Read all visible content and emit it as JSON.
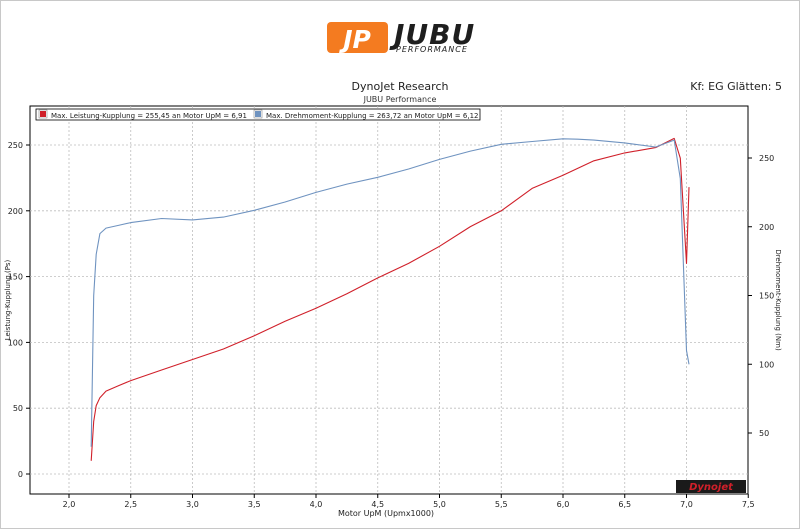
{
  "logo": {
    "badge": "JP",
    "name": "JUBU",
    "tagline": "PERFORMANCE",
    "badge_color": "#f47b20"
  },
  "header": {
    "title": "DynoJet Research",
    "subtitle": "JUBU Performance",
    "kf_info": "Kf: EG Glätten: 5"
  },
  "legend": {
    "items": [
      {
        "label": "Max. Leistung-Kupplung = 255,45 an Motor UpM = 6,91",
        "color": "#d0202a"
      },
      {
        "label": "Max. Drehmoment-Kupplung = 263,72 an Motor UpM = 6,12",
        "color": "#6f93c0"
      }
    ]
  },
  "watermark": {
    "text": "Dynojet"
  },
  "chart_data": {
    "type": "line",
    "xlabel": "Motor UpM (Upmx1000)",
    "ylabel_left": "Leistung-Kupplung (Ps)",
    "ylabel_right": "Drehmoment-Kupplung (Nm)",
    "xlim": [
      1.7,
      7.5
    ],
    "ylim_left": [
      -10,
      270
    ],
    "ylim_right": [
      -10,
      290
    ],
    "x_ticks": [
      "2,0",
      "2,5",
      "3,0",
      "3,5",
      "4,0",
      "4,5",
      "5,0",
      "5,5",
      "6,0",
      "6,5",
      "7,0",
      "7,5"
    ],
    "y_ticks_left": [
      "0",
      "50",
      "100",
      "150",
      "200",
      "250"
    ],
    "y_ticks_right": [
      "50",
      "100",
      "150",
      "200",
      "250"
    ],
    "grid": true,
    "series": [
      {
        "name": "Leistung-Kupplung",
        "axis": "left",
        "color": "#d0202a",
        "x": [
          2.18,
          2.2,
          2.22,
          2.25,
          2.3,
          2.4,
          2.5,
          2.75,
          3.0,
          3.25,
          3.5,
          3.75,
          4.0,
          4.25,
          4.5,
          4.75,
          5.0,
          5.25,
          5.5,
          5.75,
          6.0,
          6.25,
          6.5,
          6.75,
          6.9,
          6.95,
          7.0,
          7.02
        ],
        "values": [
          10,
          40,
          52,
          58,
          63,
          67,
          71,
          79,
          87,
          95,
          105,
          116,
          126,
          137,
          149,
          160,
          173,
          188,
          200,
          217,
          227,
          238,
          244,
          248,
          255,
          240,
          160,
          218
        ]
      },
      {
        "name": "Drehmoment-Kupplung",
        "axis": "right",
        "color": "#6f93c0",
        "x": [
          2.18,
          2.2,
          2.22,
          2.25,
          2.3,
          2.4,
          2.5,
          2.75,
          3.0,
          3.25,
          3.5,
          3.75,
          4.0,
          4.25,
          4.5,
          4.75,
          5.0,
          5.25,
          5.5,
          5.75,
          6.0,
          6.12,
          6.25,
          6.5,
          6.75,
          6.9,
          6.95,
          7.0,
          7.02
        ],
        "values": [
          40,
          150,
          180,
          195,
          199,
          201,
          203,
          206,
          205,
          207,
          212,
          218,
          225,
          231,
          236,
          242,
          249,
          255,
          260,
          262,
          264,
          263.7,
          263,
          261,
          258,
          263,
          235,
          110,
          100
        ]
      }
    ]
  }
}
